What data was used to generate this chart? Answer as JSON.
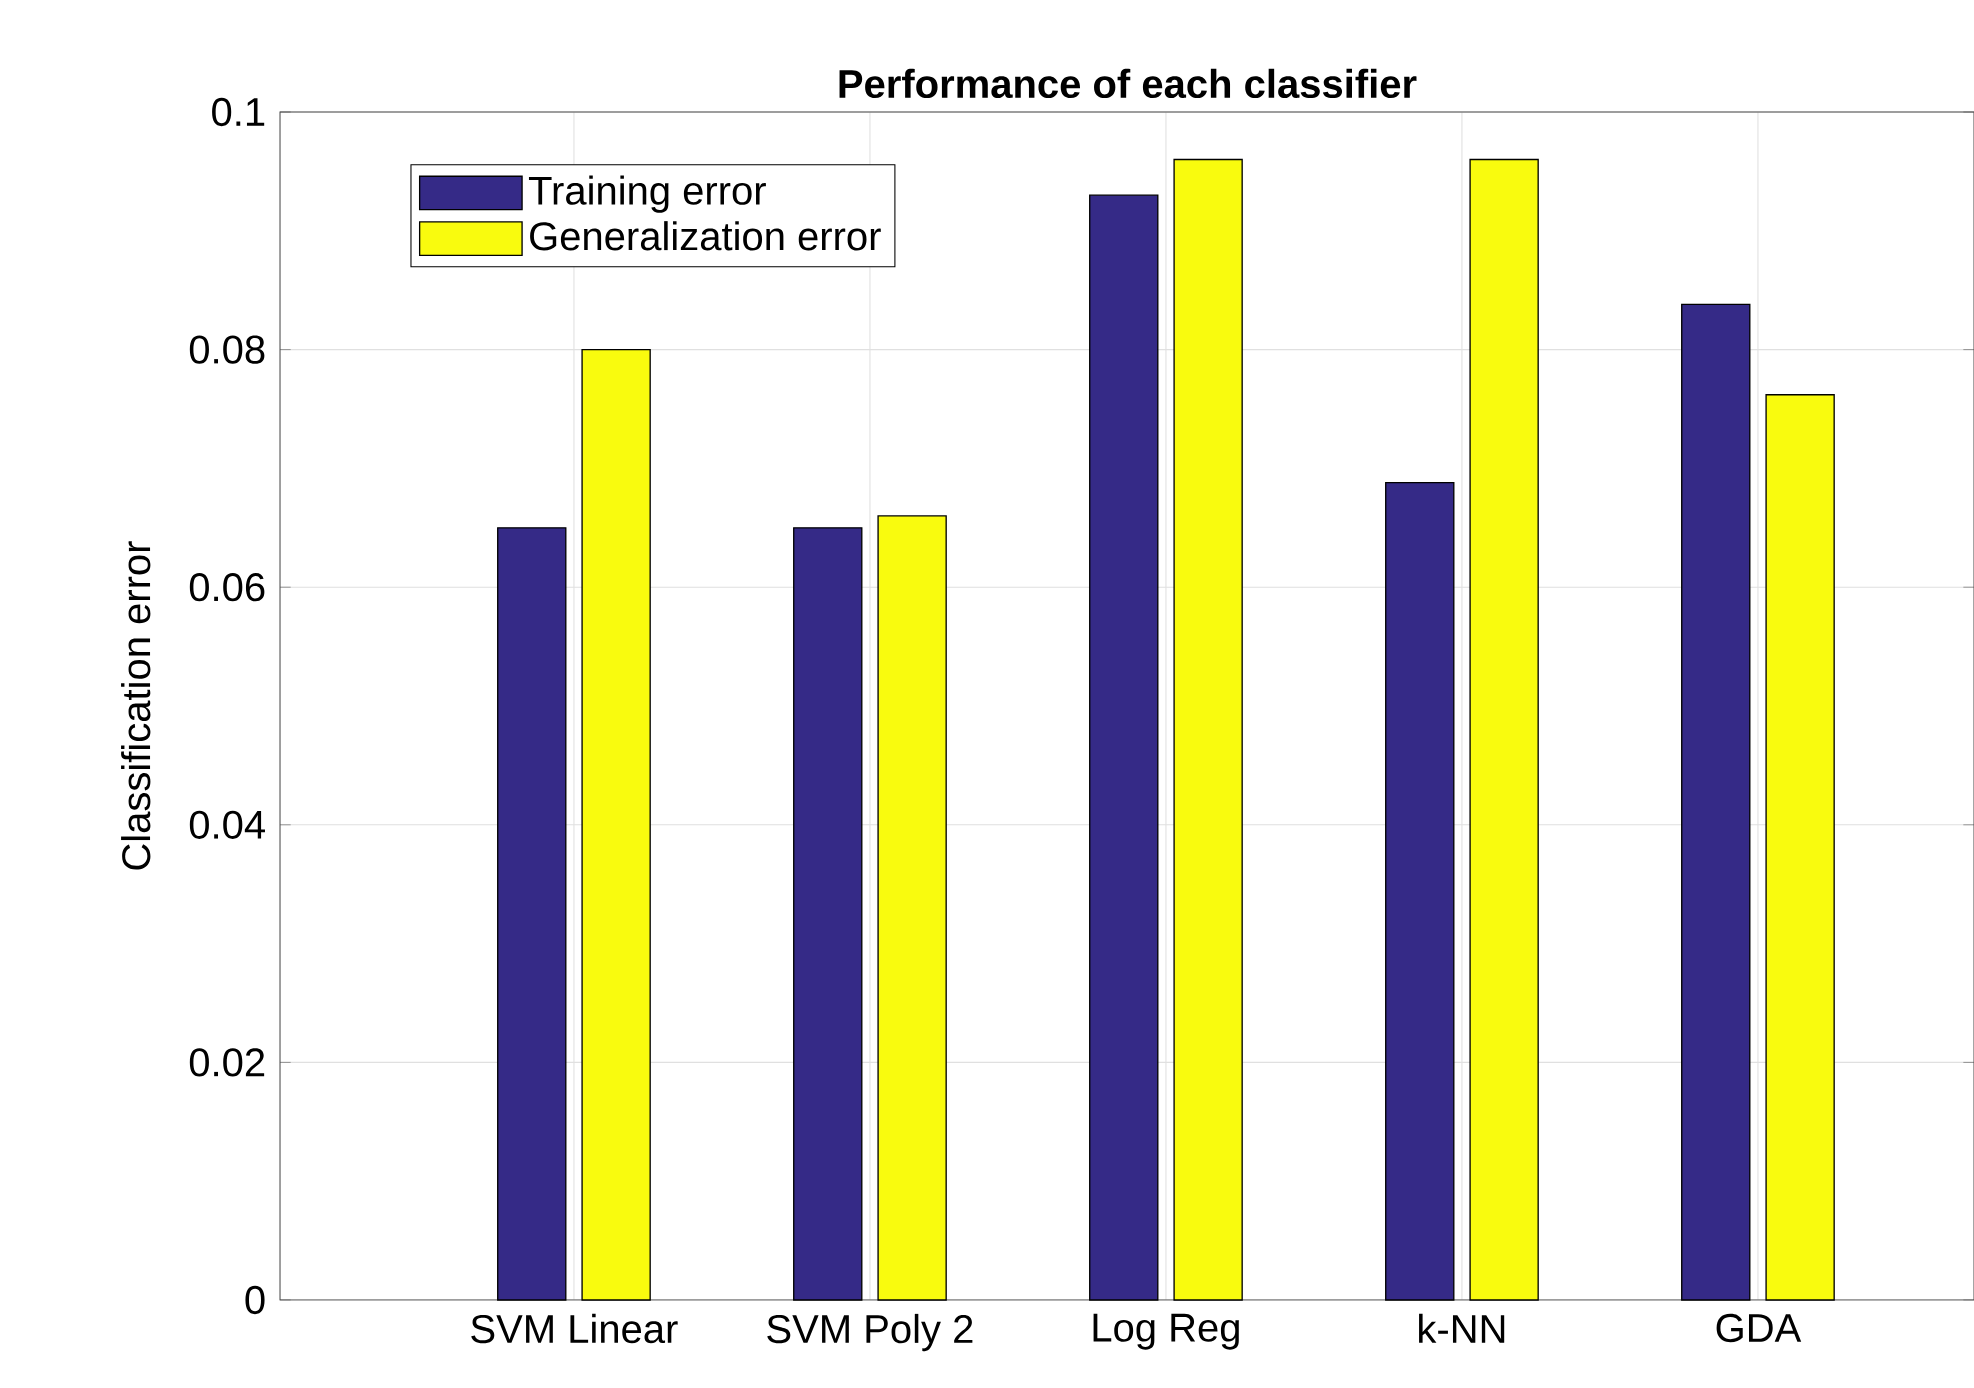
{
  "chart_data": {
    "type": "bar",
    "title": "Performance of each classifier",
    "ylabel": "Classification error",
    "categories": [
      "SVM Linear",
      "SVM Poly 2",
      "Log Reg",
      "k-NN",
      "GDA"
    ],
    "series": [
      {
        "name": "Training error",
        "color": "#352a87",
        "values": [
          0.065,
          0.065,
          0.093,
          0.0688,
          0.0838
        ]
      },
      {
        "name": "Generalization error",
        "color": "#f9fb0e",
        "values": [
          0.08,
          0.066,
          0.096,
          0.096,
          0.0762
        ]
      }
    ],
    "ylim": [
      0,
      0.1
    ],
    "yticks": [
      0,
      0.02,
      0.04,
      0.06,
      0.08,
      0.1
    ],
    "grid": true,
    "legend": "top left"
  }
}
